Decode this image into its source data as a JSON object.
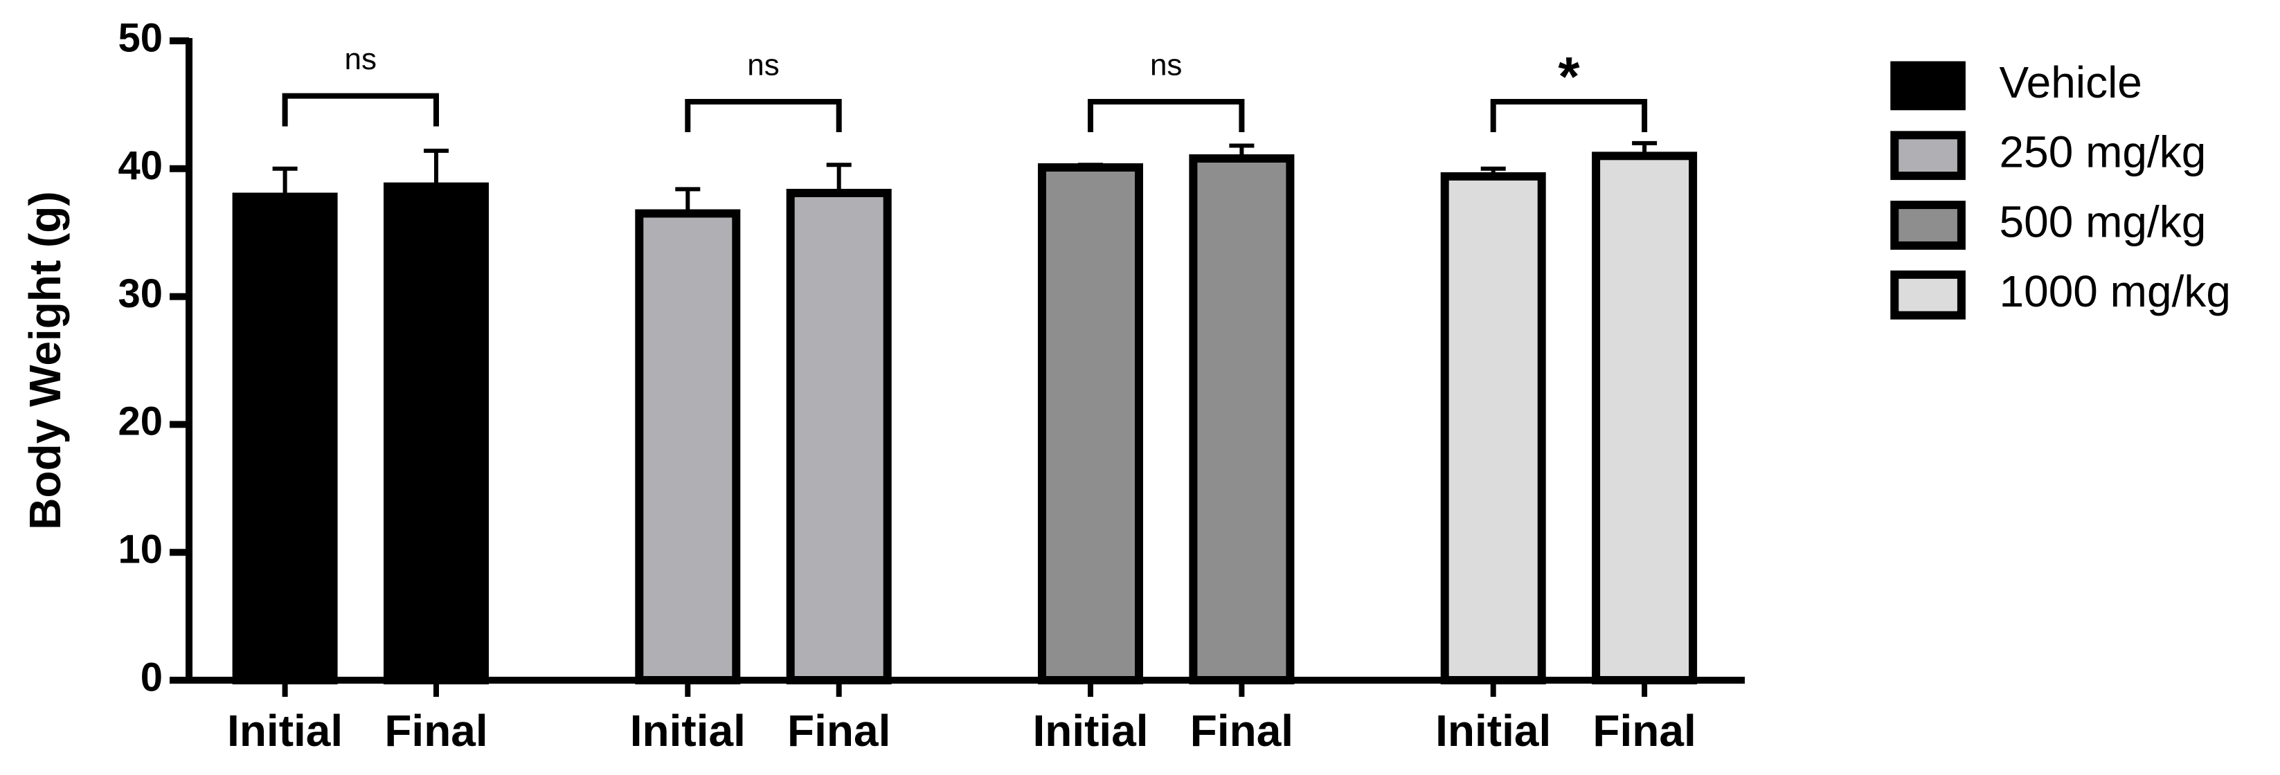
{
  "chart_data": {
    "type": "bar",
    "y_label": "Body Weight (g)",
    "categories": [
      "Initial",
      "Final"
    ],
    "series": [
      {
        "name": "Vehicle",
        "color": "#000000",
        "values": [
          37.8,
          38.6
        ],
        "errors": [
          2.2,
          2.8
        ],
        "significance": "ns"
      },
      {
        "name": "250 mg/kg",
        "color": "#b0b0b4",
        "values": [
          36.5,
          38.1
        ],
        "errors": [
          1.9,
          2.2
        ],
        "significance": "ns"
      },
      {
        "name": "500 mg/kg",
        "color": "#8e8e8e",
        "values": [
          40.1,
          40.8
        ],
        "errors": [
          0.2,
          1.0
        ],
        "significance": "ns"
      },
      {
        "name": "1000 mg/kg",
        "color": "#dcdcdc",
        "values": [
          39.4,
          41.0
        ],
        "errors": [
          0.6,
          1.0
        ],
        "significance": "*"
      }
    ],
    "ylim": [
      0,
      50
    ],
    "yticks": [
      0,
      10,
      20,
      30,
      40,
      50
    ],
    "legend": "right"
  }
}
